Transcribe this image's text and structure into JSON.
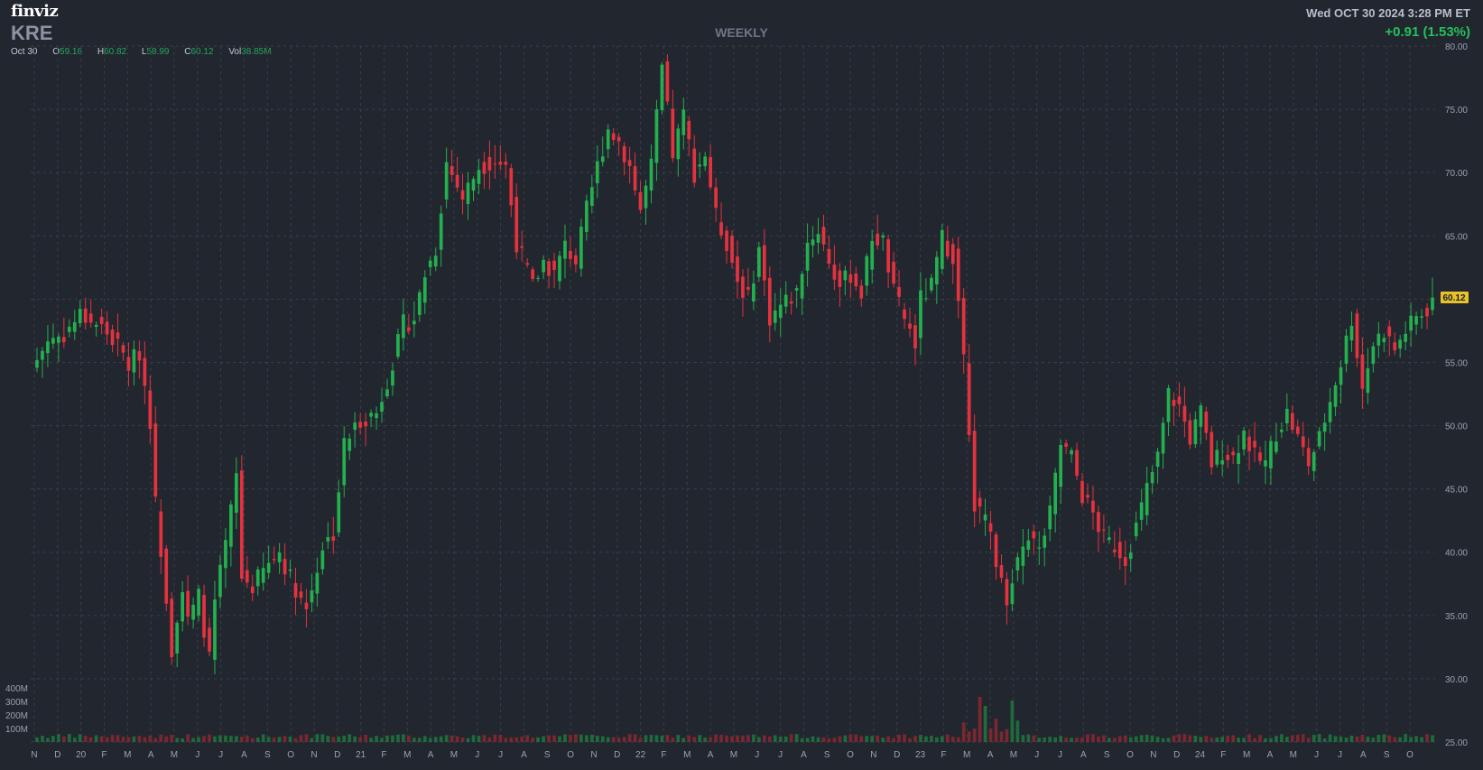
{
  "brand": "finviz",
  "symbol": "KRE",
  "period": "WEEKLY",
  "datetime": "Wed OCT 30 2024 3:28 PM ET",
  "change": "+0.91 (1.53%)",
  "ohlc": {
    "date": "Oct 30",
    "open_label": "O",
    "open": "59.16",
    "high_label": "H",
    "high": "60.82",
    "low_label": "L",
    "low": "58.99",
    "close_label": "C",
    "close": "60.12",
    "vol_label": "Vol",
    "vol": "38.85M"
  },
  "current_price_label": "60.12",
  "colors": {
    "up": "#23b04f",
    "down": "#e5323f",
    "vol_up": "#1f6b3c",
    "vol_down": "#7a2730",
    "background": "#22262f",
    "grid": "#3a3f4b",
    "price_tag": "#e9c22a"
  },
  "chart_data": {
    "type": "candlestick",
    "interval": "weekly",
    "y_axis": {
      "min": 25,
      "max": 80,
      "ticks": [
        "80.00",
        "75.00",
        "70.00",
        "65.00",
        "60.00",
        "55.00",
        "50.00",
        "45.00",
        "40.00",
        "35.00",
        "30.00",
        "25.00"
      ]
    },
    "volume_axis": {
      "ticks": [
        "400M",
        "300M",
        "200M",
        "100M"
      ]
    },
    "x_tick_labels": [
      "N",
      "D",
      "20",
      "F",
      "M",
      "A",
      "M",
      "J",
      "J",
      "A",
      "S",
      "O",
      "N",
      "D",
      "21",
      "F",
      "M",
      "A",
      "M",
      "J",
      "J",
      "A",
      "S",
      "O",
      "N",
      "D",
      "22",
      "F",
      "M",
      "A",
      "M",
      "J",
      "J",
      "A",
      "S",
      "O",
      "N",
      "D",
      "23",
      "F",
      "M",
      "A",
      "M",
      "J",
      "J",
      "A",
      "S",
      "O",
      "N",
      "D",
      "24",
      "F",
      "M",
      "A",
      "M",
      "J",
      "J",
      "A",
      "S",
      "O"
    ],
    "anchors": [
      [
        0,
        55.2
      ],
      [
        2,
        56.8
      ],
      [
        5,
        57.2
      ],
      [
        8,
        58.8
      ],
      [
        12,
        57.8
      ],
      [
        15,
        56.3
      ],
      [
        17,
        54.8
      ],
      [
        19,
        55.8
      ],
      [
        20,
        53.2
      ],
      [
        21,
        50.5
      ],
      [
        22,
        43.8
      ],
      [
        23,
        40.3
      ],
      [
        24,
        36.5
      ],
      [
        25,
        32.4
      ],
      [
        26,
        35.0
      ],
      [
        27,
        37.0
      ],
      [
        28,
        34.5
      ],
      [
        30,
        36.5
      ],
      [
        32,
        31.5
      ],
      [
        33,
        36.0
      ],
      [
        35,
        40.5
      ],
      [
        37,
        46.0
      ],
      [
        38,
        38.0
      ],
      [
        40,
        37.3
      ],
      [
        42,
        38.5
      ],
      [
        45,
        40.0
      ],
      [
        47,
        38.0
      ],
      [
        50,
        35.5
      ],
      [
        53,
        40.5
      ],
      [
        55,
        41.5
      ],
      [
        57,
        48.5
      ],
      [
        60,
        50.5
      ],
      [
        63,
        51.0
      ],
      [
        66,
        55.0
      ],
      [
        68,
        58.0
      ],
      [
        70,
        58.5
      ],
      [
        72,
        62.0
      ],
      [
        74,
        64.0
      ],
      [
        76,
        70.8
      ],
      [
        79,
        68.0
      ],
      [
        82,
        70.5
      ],
      [
        85,
        71.0
      ],
      [
        87,
        70.5
      ],
      [
        89,
        64.5
      ],
      [
        92,
        61.0
      ],
      [
        94,
        63.0
      ],
      [
        96,
        62.0
      ],
      [
        98,
        64.2
      ],
      [
        100,
        63.0
      ],
      [
        102,
        67.0
      ],
      [
        104,
        70.5
      ],
      [
        106,
        73.5
      ],
      [
        108,
        72.5
      ],
      [
        110,
        70.5
      ],
      [
        112,
        67.0
      ],
      [
        114,
        70.5
      ],
      [
        116,
        78.2
      ],
      [
        118,
        71.5
      ],
      [
        120,
        74.5
      ],
      [
        122,
        70.0
      ],
      [
        124,
        71.5
      ],
      [
        126,
        66.5
      ],
      [
        128,
        64.5
      ],
      [
        130,
        61.5
      ],
      [
        132,
        60.0
      ],
      [
        134,
        64.0
      ],
      [
        136,
        58.5
      ],
      [
        138,
        59.5
      ],
      [
        141,
        60.5
      ],
      [
        143,
        64.5
      ],
      [
        145,
        65.5
      ],
      [
        147,
        63.0
      ],
      [
        149,
        61.0
      ],
      [
        151,
        62.0
      ],
      [
        153,
        60.5
      ],
      [
        155,
        65.0
      ],
      [
        157,
        64.5
      ],
      [
        159,
        60.5
      ],
      [
        161,
        58.5
      ],
      [
        162,
        57.5
      ],
      [
        163,
        56.5
      ],
      [
        164,
        60.0
      ],
      [
        166,
        61.0
      ],
      [
        168,
        64.8
      ],
      [
        170,
        63.5
      ],
      [
        171,
        59.5
      ],
      [
        172,
        55.5
      ],
      [
        173,
        50.0
      ],
      [
        174,
        44.0
      ],
      [
        175,
        43.0
      ],
      [
        177,
        41.5
      ],
      [
        179,
        37.5
      ],
      [
        180,
        36.5
      ],
      [
        182,
        39.5
      ],
      [
        184,
        41.5
      ],
      [
        186,
        40.0
      ],
      [
        188,
        43.0
      ],
      [
        190,
        48.5
      ],
      [
        192,
        47.5
      ],
      [
        194,
        44.5
      ],
      [
        196,
        43.0
      ],
      [
        198,
        41.0
      ],
      [
        200,
        40.5
      ],
      [
        202,
        39.5
      ],
      [
        204,
        42.0
      ],
      [
        206,
        45.0
      ],
      [
        208,
        47.5
      ],
      [
        210,
        52.5
      ],
      [
        212,
        51.5
      ],
      [
        214,
        49.0
      ],
      [
        216,
        51.0
      ],
      [
        218,
        47.0
      ],
      [
        220,
        48.0
      ],
      [
        222,
        47.5
      ],
      [
        224,
        49.5
      ],
      [
        226,
        47.5
      ],
      [
        228,
        47.0
      ],
      [
        230,
        49.5
      ],
      [
        232,
        51.0
      ],
      [
        234,
        49.0
      ],
      [
        236,
        47.0
      ],
      [
        238,
        49.0
      ],
      [
        240,
        52.0
      ],
      [
        242,
        55.0
      ],
      [
        244,
        58.5
      ],
      [
        246,
        53.0
      ],
      [
        248,
        56.5
      ],
      [
        250,
        57.5
      ],
      [
        252,
        56.0
      ],
      [
        254,
        57.5
      ],
      [
        256,
        58.5
      ],
      [
        258,
        59.2
      ],
      [
        259,
        60.12
      ]
    ]
  }
}
